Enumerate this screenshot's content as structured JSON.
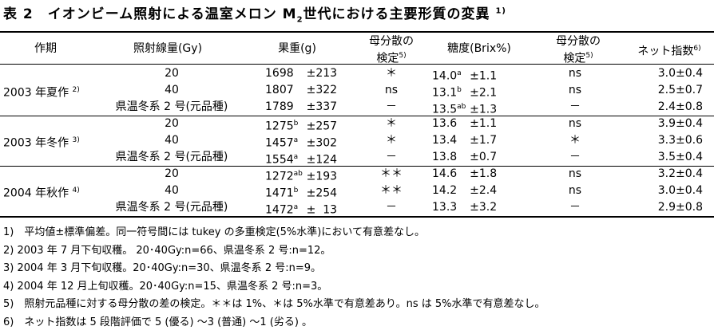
{
  "title": {
    "prefix": "表 2　イオンビーム照射による温室メロン M",
    "sub": "2",
    "suffix": "世代における主要形質の変異",
    "note_ref": "1)"
  },
  "headers": {
    "season": "作期",
    "dose": "照射線量(Gy)",
    "weight": "果重(g)",
    "var_test1_line1": "母分散の",
    "var_test1_line2": "検定",
    "var_test1_ref": "5)",
    "brix": "糖度(Brix%)",
    "var_test2_line1": "母分散の",
    "var_test2_line2": "検定",
    "var_test2_ref": "5)",
    "net": "ネット指数",
    "net_ref": "6)"
  },
  "groups": [
    {
      "season": "2003 年夏作",
      "ref": "2)",
      "rows": [
        {
          "dose": "20",
          "weight": "1698",
          "weight_sup": "",
          "weight_sd": "±213",
          "test1": "＊",
          "brix": "14.0",
          "brix_sup": "a",
          "brix_sd": "±1.1",
          "test2": "ns",
          "net": "3.0±0.4"
        },
        {
          "dose": "40",
          "weight": "1807",
          "weight_sup": "",
          "weight_sd": "±322",
          "test1": "ns",
          "brix": "13.1",
          "brix_sup": "b",
          "brix_sd": "±2.1",
          "test2": "ns",
          "net": "2.5±0.7"
        },
        {
          "dose": "県温冬系 2 号(元品種)",
          "weight": "1789",
          "weight_sup": "",
          "weight_sd": "±337",
          "test1": "－",
          "brix": "13.5",
          "brix_sup": "ab",
          "brix_sd": "±1.3",
          "test2": "－",
          "net": "2.4±0.8"
        }
      ]
    },
    {
      "season": "2003 年冬作",
      "ref": "3)",
      "rows": [
        {
          "dose": "20",
          "weight": "1275",
          "weight_sup": "b",
          "weight_sd": "±257",
          "test1": "＊",
          "brix": "13.6",
          "brix_sup": "",
          "brix_sd": "±1.1",
          "test2": "ns",
          "net": "3.9±0.4"
        },
        {
          "dose": "40",
          "weight": "1457",
          "weight_sup": "a",
          "weight_sd": "±302",
          "test1": "＊",
          "brix": "13.4",
          "brix_sup": "",
          "brix_sd": "±1.7",
          "test2": "＊",
          "net": "3.3±0.6"
        },
        {
          "dose": "県温冬系 2 号(元品種)",
          "weight": "1554",
          "weight_sup": "a",
          "weight_sd": "±124",
          "test1": "－",
          "brix": "13.8",
          "brix_sup": "",
          "brix_sd": "±0.7",
          "test2": "－",
          "net": "3.5±0.4"
        }
      ]
    },
    {
      "season": "2004 年秋作",
      "ref": "4)",
      "rows": [
        {
          "dose": "20",
          "weight": "1272",
          "weight_sup": "ab",
          "weight_sd": "±193",
          "test1": "＊＊",
          "brix": "14.6",
          "brix_sup": "",
          "brix_sd": "±1.8",
          "test2": "ns",
          "net": "3.2±0.4"
        },
        {
          "dose": "40",
          "weight": "1471",
          "weight_sup": "b",
          "weight_sd": "±254",
          "test1": "＊＊",
          "brix": "14.2",
          "brix_sup": "",
          "brix_sd": "±2.4",
          "test2": "ns",
          "net": "3.0±0.4"
        },
        {
          "dose": "県温冬系 2 号(元品種)",
          "weight": "1472",
          "weight_sup": "a",
          "weight_sd": "±  13",
          "test1": "－",
          "brix": "13.3",
          "brix_sup": "",
          "brix_sd": "±3.2",
          "test2": "－",
          "net": "2.9±0.8"
        }
      ]
    }
  ],
  "footnotes": [
    "1)　平均値±標準偏差。同一符号間には tukey の多重検定(5%水準)において有意差なし。",
    "2) 2003 年 7 月下旬収穫。 20･40Gy:n=66、県温冬系 2 号:n=12。",
    "3) 2004 年 3 月下旬収穫。20･40Gy:n=30、県温冬系 2 号:n=9。",
    "4) 2004 年 12 月上旬収穫。20･40Gy:n=15、県温冬系 2 号:n=3。",
    "5)　照射元品種に対する母分散の差の検定。＊＊は 1%、＊は 5%水準で有意差あり。ns は 5%水準で有意差なし。",
    "6)　ネット指数は 5 段階評価で 5 (優る) ～3 (普通) ～1 (劣る) 。"
  ]
}
